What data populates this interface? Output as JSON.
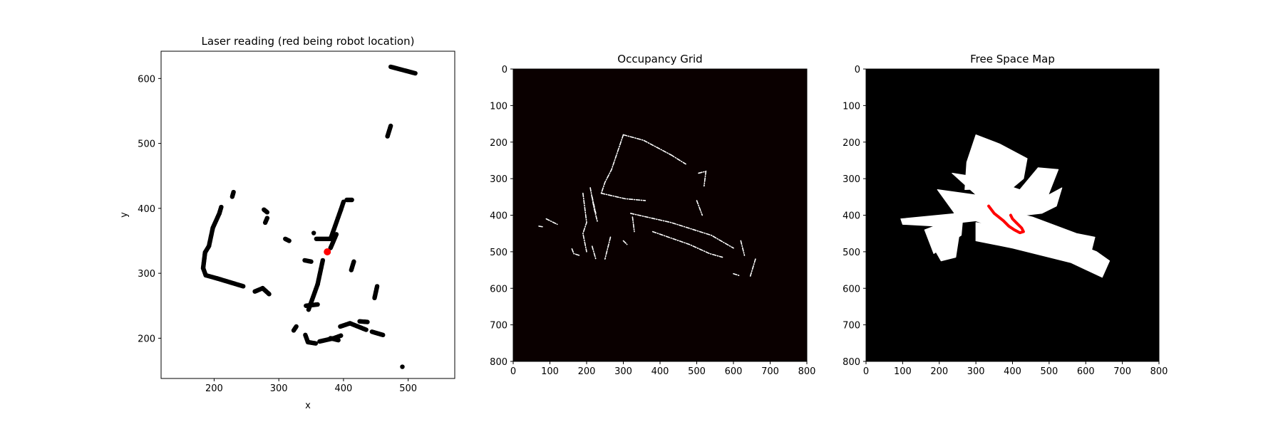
{
  "chart_data": [
    {
      "type": "scatter",
      "title": "Laser reading (red being robot location)",
      "xlabel": "x",
      "ylabel": "y",
      "xlim": [
        118,
        572
      ],
      "ylim": [
        138,
        642
      ],
      "xticks": [
        200,
        300,
        400,
        500
      ],
      "yticks": [
        200,
        300,
        400,
        500,
        600
      ],
      "series": [
        {
          "role": "laser-points",
          "color": "#000000",
          "segments": [
            [
              [
                183,
                308
              ],
              [
                187,
                297
              ],
              [
                205,
                292
              ],
              [
                225,
                286
              ],
              [
                245,
                280
              ]
            ],
            [
              [
                183,
                308
              ],
              [
                186,
                332
              ],
              [
                192,
                342
              ],
              [
                198,
                370
              ],
              [
                208,
                392
              ],
              [
                211,
                402
              ]
            ],
            [
              [
                228,
                418
              ],
              [
                230,
                425
              ]
            ],
            [
              [
                263,
                272
              ],
              [
                275,
                277
              ],
              [
                285,
                268
              ]
            ],
            [
              [
                279,
                378
              ],
              [
                282,
                385
              ]
            ],
            [
              [
                277,
                398
              ],
              [
                282,
                394
              ]
            ],
            [
              [
                310,
                353
              ],
              [
                316,
                350
              ]
            ],
            [
              [
                354,
                362
              ]
            ],
            [
              [
                346,
                244
              ],
              [
                360,
                283
              ],
              [
                368,
                320
              ]
            ],
            [
              [
                342,
                250
              ],
              [
                360,
                252
              ]
            ],
            [
              [
                340,
                320
              ],
              [
                350,
                318
              ]
            ],
            [
              [
                363,
                195
              ],
              [
                385,
                200
              ],
              [
                396,
                204
              ]
            ],
            [
              [
                341,
                205
              ],
              [
                345,
                194
              ],
              [
                357,
                192
              ]
            ],
            [
              [
                323,
                212
              ],
              [
                327,
                218
              ]
            ],
            [
              [
                380,
                200
              ],
              [
                392,
                197
              ]
            ],
            [
              [
                395,
                218
              ],
              [
                410,
                223
              ],
              [
                435,
                213
              ]
            ],
            [
              [
                425,
                226
              ],
              [
                437,
                225
              ]
            ],
            [
              [
                444,
                210
              ],
              [
                461,
                205
              ]
            ],
            [
              [
                448,
                262
              ],
              [
                452,
                280
              ]
            ],
            [
              [
                412,
                305
              ],
              [
                416,
                318
              ]
            ],
            [
              [
                358,
                353
              ],
              [
                380,
                353
              ],
              [
                396,
                398
              ],
              [
                400,
                410
              ]
            ],
            [
              [
                405,
                413
              ],
              [
                413,
                413
              ]
            ],
            [
              [
                380,
                339
              ],
              [
                389,
                360
              ]
            ],
            [
              [
                468,
                511
              ],
              [
                473,
                527
              ]
            ],
            [
              [
                473,
                618
              ],
              [
                511,
                608
              ]
            ],
            [
              [
                491,
                156
              ]
            ]
          ]
        },
        {
          "role": "robot-location",
          "color": "#ff0000",
          "points": [
            [
              375,
              333
            ]
          ]
        }
      ]
    },
    {
      "type": "heatmap",
      "title": "Occupancy Grid",
      "xlim": [
        0,
        800
      ],
      "ylim": [
        800,
        0
      ],
      "xticks": [
        0,
        100,
        200,
        300,
        400,
        500,
        600,
        700,
        800
      ],
      "yticks": [
        0,
        100,
        200,
        300,
        400,
        500,
        600,
        700,
        800
      ],
      "background": "#0a0000",
      "foreground": "#ffffff",
      "segments": [
        [
          [
            300,
            180
          ],
          [
            355,
            195
          ],
          [
            430,
            235
          ]
        ],
        [
          [
            300,
            180
          ],
          [
            268,
            275
          ],
          [
            250,
            310
          ],
          [
            240,
            340
          ]
        ],
        [
          [
            240,
            340
          ],
          [
            305,
            355
          ],
          [
            360,
            360
          ]
        ],
        [
          [
            210,
            325
          ],
          [
            220,
            380
          ],
          [
            230,
            420
          ]
        ],
        [
          [
            190,
            340
          ],
          [
            200,
            420
          ],
          [
            190,
            450
          ],
          [
            200,
            500
          ]
        ],
        [
          [
            215,
            350
          ],
          [
            225,
            395
          ]
        ],
        [
          [
            90,
            410
          ],
          [
            120,
            425
          ]
        ],
        [
          [
            70,
            430
          ],
          [
            82,
            432
          ]
        ],
        [
          [
            320,
            395
          ],
          [
            430,
            420
          ],
          [
            540,
            455
          ],
          [
            600,
            490
          ]
        ],
        [
          [
            380,
            445
          ],
          [
            480,
            480
          ],
          [
            535,
            505
          ],
          [
            570,
            515
          ]
        ],
        [
          [
            265,
            460
          ],
          [
            255,
            500
          ],
          [
            250,
            520
          ]
        ],
        [
          [
            215,
            485
          ],
          [
            225,
            520
          ]
        ],
        [
          [
            160,
            492
          ],
          [
            165,
            505
          ],
          [
            180,
            510
          ]
        ],
        [
          [
            300,
            470
          ],
          [
            310,
            480
          ]
        ],
        [
          [
            325,
            405
          ],
          [
            330,
            445
          ]
        ],
        [
          [
            505,
            285
          ],
          [
            525,
            280
          ],
          [
            520,
            320
          ]
        ],
        [
          [
            500,
            360
          ],
          [
            515,
            400
          ]
        ],
        [
          [
            620,
            470
          ],
          [
            630,
            510
          ]
        ],
        [
          [
            660,
            520
          ],
          [
            645,
            570
          ]
        ],
        [
          [
            600,
            560
          ],
          [
            615,
            565
          ]
        ],
        [
          [
            430,
            235
          ],
          [
            470,
            260
          ]
        ]
      ]
    },
    {
      "type": "heatmap",
      "title": "Free Space Map",
      "xlim": [
        0,
        800
      ],
      "ylim": [
        800,
        0
      ],
      "xticks": [
        0,
        100,
        200,
        300,
        400,
        500,
        600,
        700,
        800
      ],
      "yticks": [
        0,
        100,
        200,
        300,
        400,
        500,
        600,
        700,
        800
      ],
      "background": "#000000",
      "free_color": "#ffffff",
      "path_color": "#ff0000",
      "free_regions": [
        [
          [
            300,
            180
          ],
          [
            365,
            205
          ],
          [
            440,
            245
          ],
          [
            430,
            300
          ],
          [
            400,
            325
          ],
          [
            270,
            330
          ],
          [
            275,
            255
          ]
        ],
        [
          [
            235,
            285
          ],
          [
            330,
            300
          ],
          [
            420,
            330
          ],
          [
            470,
            270
          ],
          [
            525,
            275
          ],
          [
            480,
            390
          ],
          [
            340,
            380
          ]
        ],
        [
          [
            195,
            330
          ],
          [
            340,
            350
          ],
          [
            470,
            360
          ],
          [
            535,
            325
          ],
          [
            520,
            375
          ],
          [
            480,
            395
          ],
          [
            260,
            420
          ]
        ],
        [
          [
            95,
            410
          ],
          [
            250,
            395
          ],
          [
            260,
            430
          ],
          [
            190,
            430
          ],
          [
            100,
            425
          ]
        ],
        [
          [
            160,
            440
          ],
          [
            265,
            400
          ],
          [
            260,
            455
          ],
          [
            185,
            505
          ]
        ],
        [
          [
            185,
            490
          ],
          [
            255,
            450
          ],
          [
            245,
            515
          ],
          [
            205,
            525
          ]
        ],
        [
          [
            240,
            395
          ],
          [
            350,
            380
          ],
          [
            455,
            405
          ],
          [
            575,
            450
          ],
          [
            625,
            460
          ],
          [
            615,
            500
          ],
          [
            530,
            495
          ]
        ],
        [
          [
            300,
            420
          ],
          [
            420,
            440
          ],
          [
            530,
            460
          ],
          [
            630,
            500
          ],
          [
            665,
            525
          ],
          [
            645,
            570
          ],
          [
            560,
            530
          ],
          [
            400,
            490
          ],
          [
            300,
            470
          ]
        ],
        [
          [
            330,
            455
          ],
          [
            460,
            470
          ],
          [
            450,
            485
          ],
          [
            330,
            470
          ]
        ]
      ],
      "robot_path": [
        [
          335,
          375
        ],
        [
          350,
          395
        ],
        [
          375,
          415
        ],
        [
          390,
          430
        ],
        [
          405,
          440
        ],
        [
          420,
          448
        ],
        [
          430,
          445
        ],
        [
          425,
          435
        ],
        [
          410,
          420
        ],
        [
          400,
          410
        ],
        [
          395,
          400
        ]
      ]
    }
  ]
}
